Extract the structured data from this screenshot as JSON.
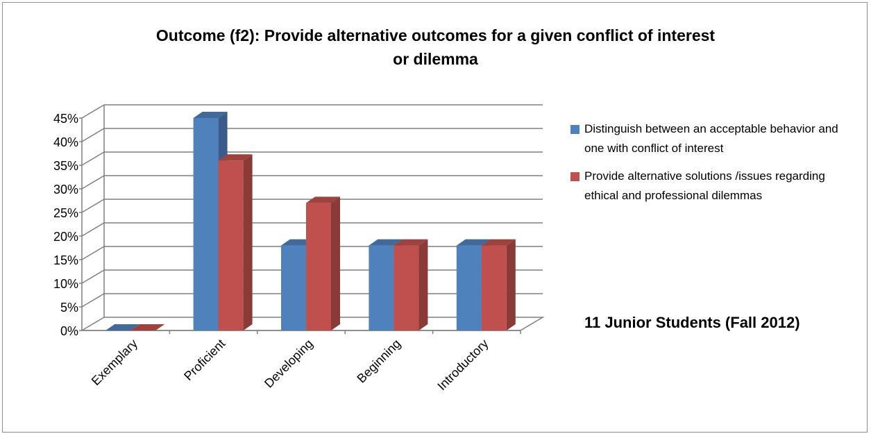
{
  "chart_data": {
    "type": "bar",
    "title_lines": [
      "Outcome (f2): Provide alternative outcomes for a given conflict of interest",
      "or dilemma"
    ],
    "categories": [
      "Exemplary",
      "Proficient",
      "Developing",
      "Beginning",
      "Introductory"
    ],
    "series": [
      {
        "name": "Distinguish between an acceptable behavior and one with conflict of interest",
        "color": "#4f81bd",
        "values": [
          0,
          45,
          18,
          18,
          18
        ]
      },
      {
        "name": "Provide alternative solutions /issues regarding ethical and professional dilemmas",
        "color": "#c0504d",
        "values": [
          0,
          36,
          27,
          18,
          18
        ]
      }
    ],
    "y_ticks": [
      "0%",
      "5%",
      "10%",
      "15%",
      "20%",
      "25%",
      "30%",
      "35%",
      "40%",
      "45%"
    ],
    "ylim": [
      0,
      45
    ],
    "grid": true,
    "legend_position": "right",
    "style": "3d-clustered-column"
  },
  "note": "11 Junior Students (Fall 2012)"
}
